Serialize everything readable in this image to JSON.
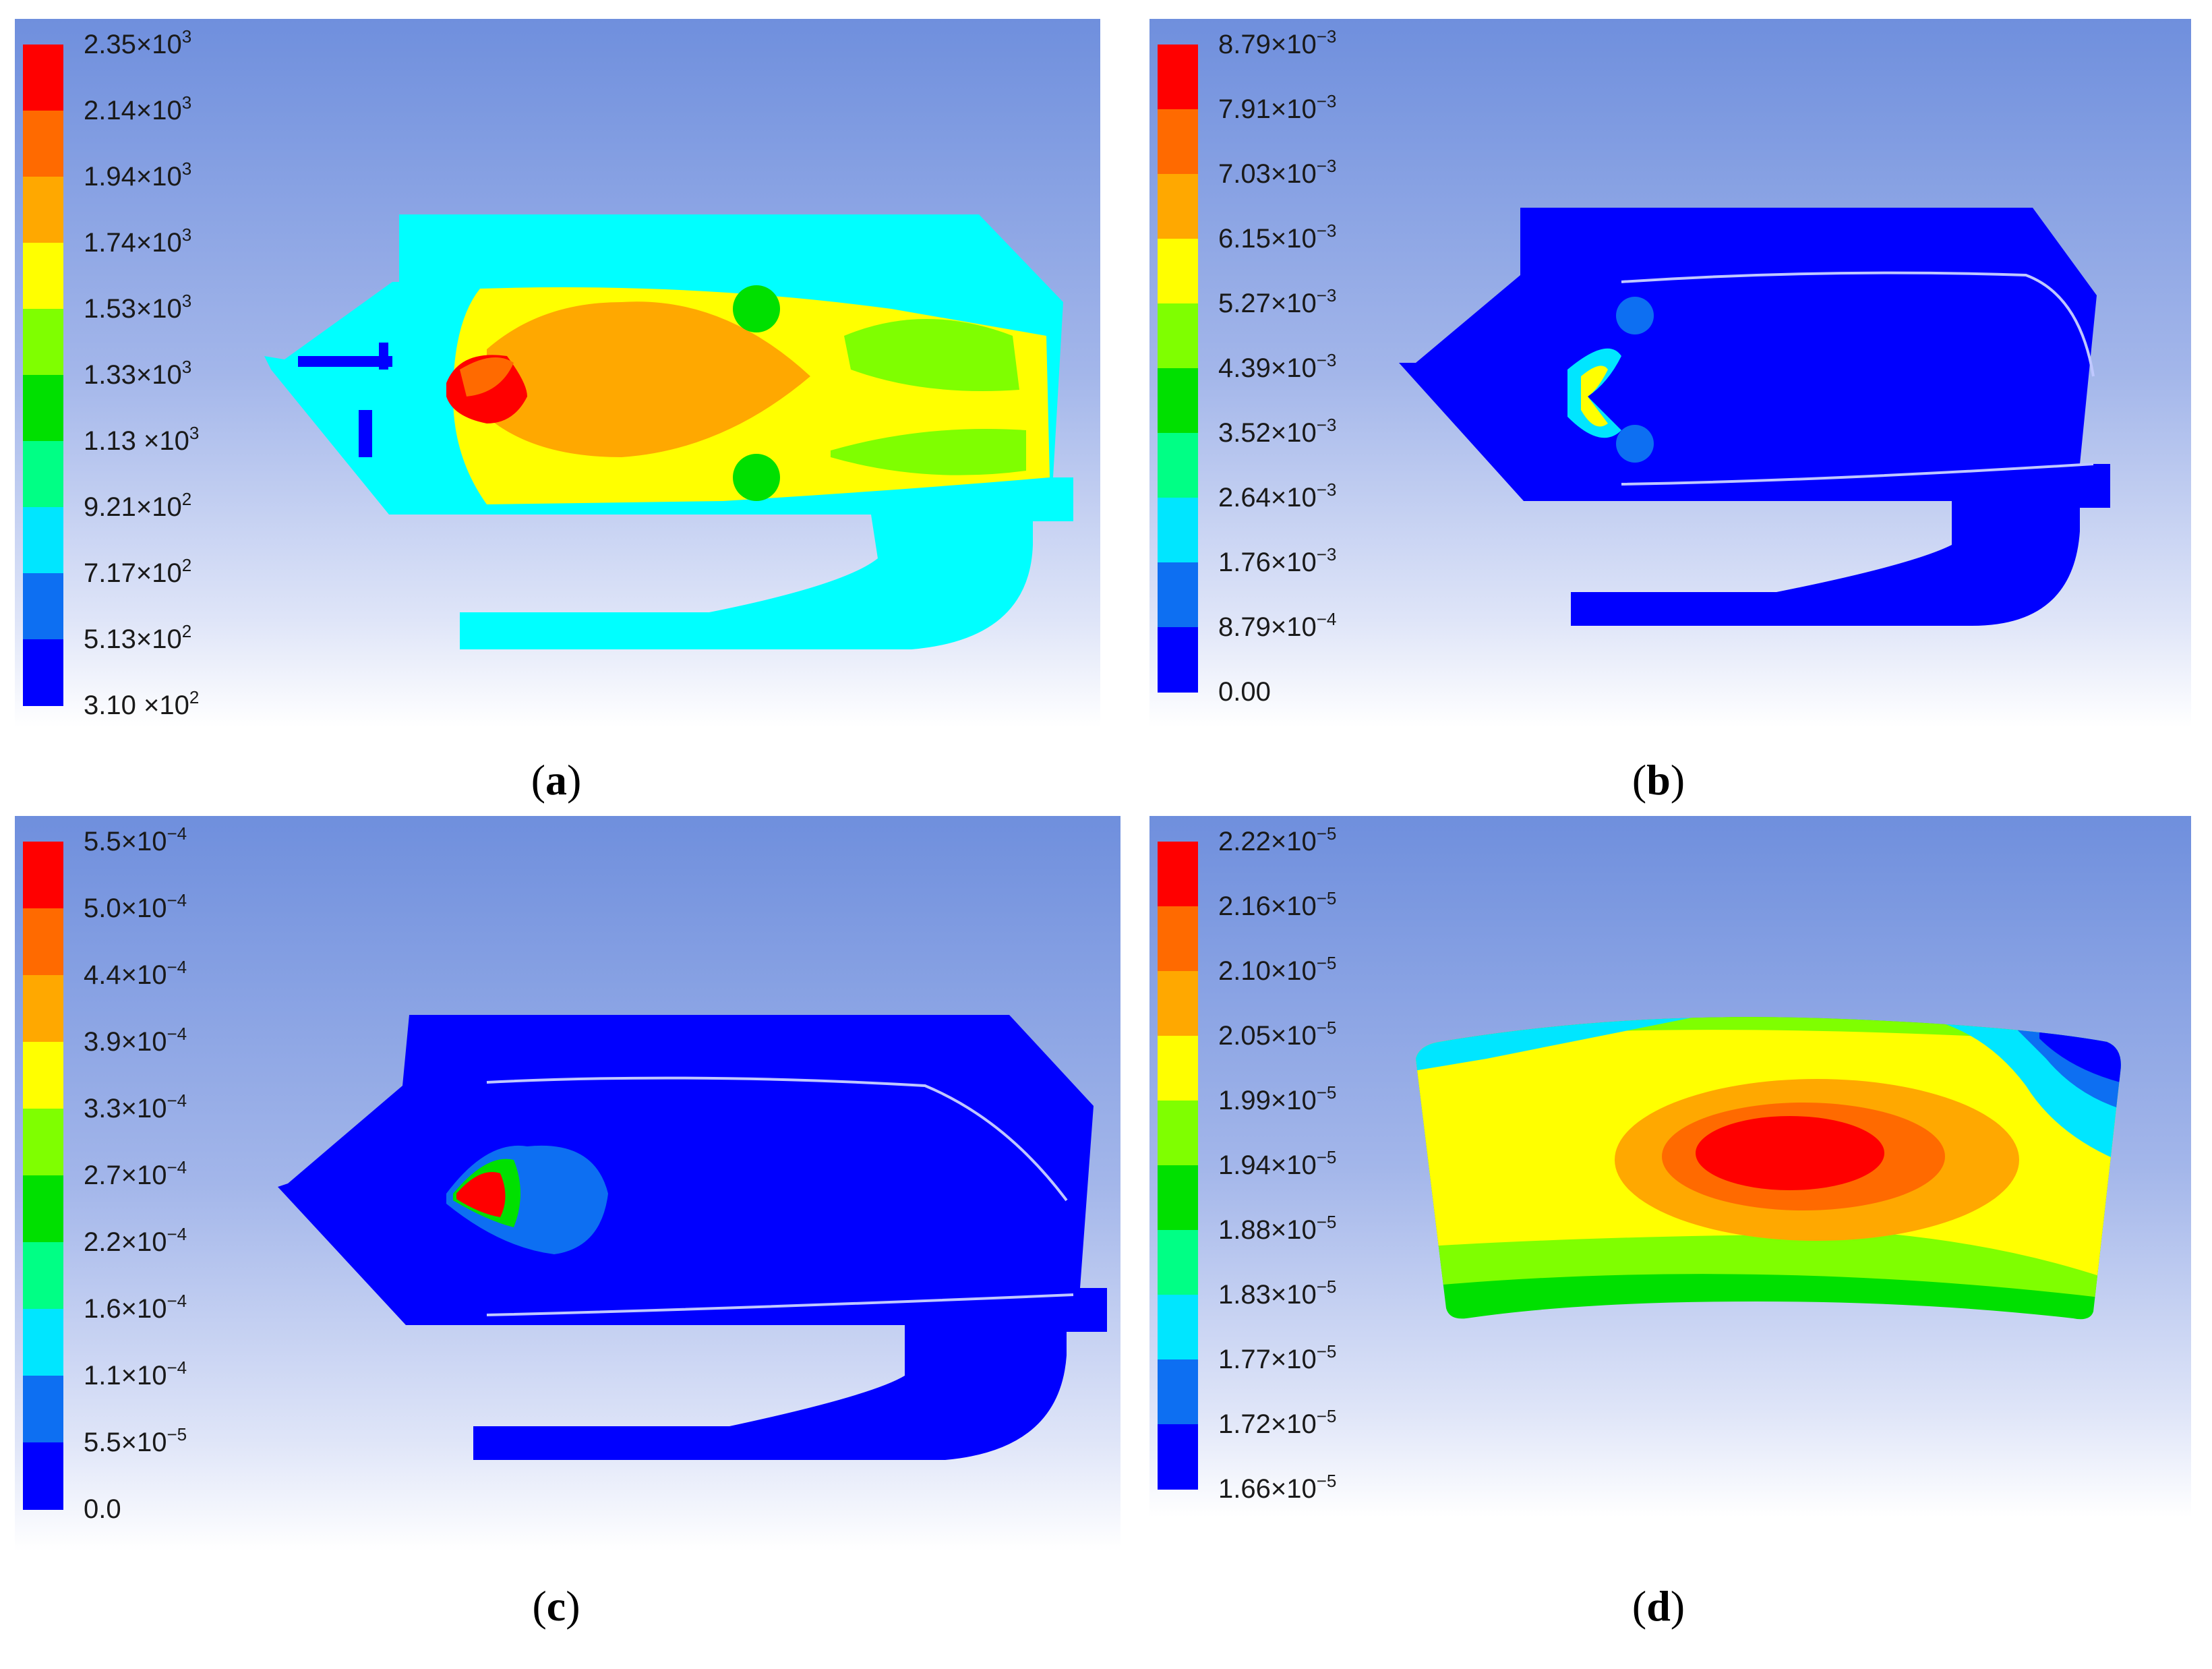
{
  "colors": [
    "#0000ff",
    "#0d6ff2",
    "#00e6ff",
    "#00ff85",
    "#00e000",
    "#7fff00",
    "#ffff00",
    "#ffa800",
    "#ff6a00",
    "#ff0000"
  ],
  "panels": {
    "a": {
      "caption": "a",
      "legend": [
        {
          "m": "2.35",
          "e": "3"
        },
        {
          "m": "2.14",
          "e": "3"
        },
        {
          "m": "1.94",
          "e": "3"
        },
        {
          "m": "1.74",
          "e": "3"
        },
        {
          "m": "1.53",
          "e": "3"
        },
        {
          "m": "1.33",
          "e": "3"
        },
        {
          "m": "1.13 ",
          "e": "3"
        },
        {
          "m": "9.21",
          "e": "2"
        },
        {
          "m": "7.17",
          "e": "2"
        },
        {
          "m": "5.13",
          "e": "2"
        },
        {
          "m": "3.10 ",
          "e": "2"
        }
      ]
    },
    "b": {
      "caption": "b",
      "legend": [
        {
          "m": "8.79",
          "e": "−3"
        },
        {
          "m": "7.91",
          "e": "−3"
        },
        {
          "m": "7.03",
          "e": "−3"
        },
        {
          "m": "6.15",
          "e": "−3"
        },
        {
          "m": "5.27",
          "e": "−3"
        },
        {
          "m": "4.39",
          "e": "−3"
        },
        {
          "m": "3.52",
          "e": "−3"
        },
        {
          "m": "2.64",
          "e": "−3"
        },
        {
          "m": "1.76",
          "e": "−3"
        },
        {
          "m": "8.79",
          "e": "−4"
        },
        {
          "m": "0.00",
          "e": ""
        }
      ]
    },
    "c": {
      "caption": "c",
      "legend": [
        {
          "m": "5.5",
          "e": "−4"
        },
        {
          "m": "5.0",
          "e": "−4"
        },
        {
          "m": "4.4",
          "e": "−4"
        },
        {
          "m": "3.9",
          "e": "−4"
        },
        {
          "m": "3.3",
          "e": "−4"
        },
        {
          "m": "2.7",
          "e": "−4"
        },
        {
          "m": "2.2",
          "e": "−4"
        },
        {
          "m": "1.6",
          "e": "−4"
        },
        {
          "m": "1.1",
          "e": "−4"
        },
        {
          "m": "5.5",
          "e": "−5"
        },
        {
          "m": "0.0",
          "e": ""
        }
      ]
    },
    "d": {
      "caption": "d",
      "legend": [
        {
          "m": "2.22",
          "e": "−5"
        },
        {
          "m": "2.16",
          "e": "−5"
        },
        {
          "m": "2.10",
          "e": "−5"
        },
        {
          "m": "2.05",
          "e": "−5"
        },
        {
          "m": "1.99",
          "e": "−5"
        },
        {
          "m": "1.94",
          "e": "−5"
        },
        {
          "m": "1.88",
          "e": "−5"
        },
        {
          "m": "1.83",
          "e": "−5"
        },
        {
          "m": "1.77",
          "e": "−5"
        },
        {
          "m": "1.72",
          "e": "−5"
        },
        {
          "m": "1.66",
          "e": "−5"
        }
      ]
    }
  }
}
